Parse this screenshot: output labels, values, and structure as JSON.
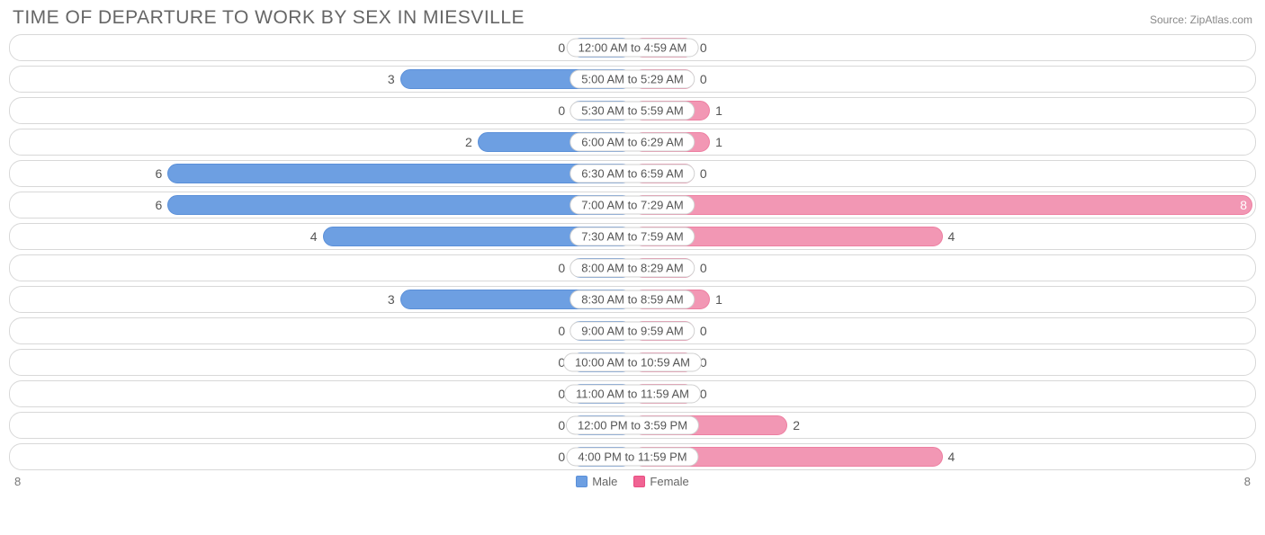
{
  "title": "TIME OF DEPARTURE TO WORK BY SEX IN MIESVILLE",
  "source": "Source: ZipAtlas.com",
  "chart": {
    "type": "diverging-bar",
    "male_color": "#6d9fe2",
    "female_color": "#f297b4",
    "female_swatch_color": "#f06493",
    "border_color": "#d8d8d8",
    "text_color": "#555555",
    "title_color": "#666666",
    "background_color": "#ffffff",
    "label_fontsize": 13,
    "value_fontsize": 14,
    "title_fontsize": 21,
    "axis_max": 8,
    "min_bar_pct": 10,
    "rows": [
      {
        "label": "12:00 AM to 4:59 AM",
        "male": 0,
        "female": 0
      },
      {
        "label": "5:00 AM to 5:29 AM",
        "male": 3,
        "female": 0
      },
      {
        "label": "5:30 AM to 5:59 AM",
        "male": 0,
        "female": 1
      },
      {
        "label": "6:00 AM to 6:29 AM",
        "male": 2,
        "female": 1
      },
      {
        "label": "6:30 AM to 6:59 AM",
        "male": 6,
        "female": 0
      },
      {
        "label": "7:00 AM to 7:29 AM",
        "male": 6,
        "female": 8
      },
      {
        "label": "7:30 AM to 7:59 AM",
        "male": 4,
        "female": 4
      },
      {
        "label": "8:00 AM to 8:29 AM",
        "male": 0,
        "female": 0
      },
      {
        "label": "8:30 AM to 8:59 AM",
        "male": 3,
        "female": 1
      },
      {
        "label": "9:00 AM to 9:59 AM",
        "male": 0,
        "female": 0
      },
      {
        "label": "10:00 AM to 10:59 AM",
        "male": 0,
        "female": 0
      },
      {
        "label": "11:00 AM to 11:59 AM",
        "male": 0,
        "female": 0
      },
      {
        "label": "12:00 PM to 3:59 PM",
        "male": 0,
        "female": 2
      },
      {
        "label": "4:00 PM to 11:59 PM",
        "male": 0,
        "female": 4
      }
    ]
  },
  "legend": {
    "male": "Male",
    "female": "Female"
  },
  "axis_left": "8",
  "axis_right": "8"
}
